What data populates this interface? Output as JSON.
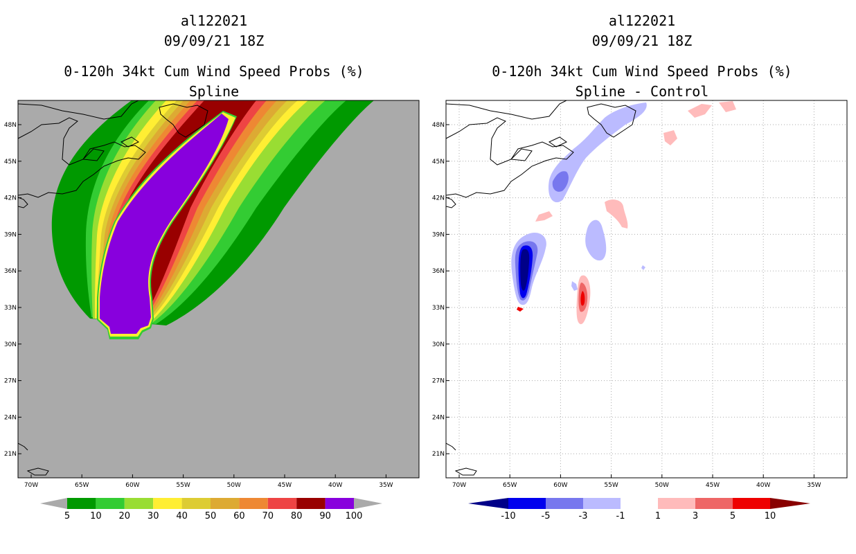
{
  "left": {
    "title": {
      "storm": "al122021",
      "datetime": "09/09/21 18Z",
      "product": "0-120h 34kt Cum Wind Speed Probs (%)",
      "subtitle": "Spline"
    },
    "lat_labels": [
      "48N",
      "45N",
      "42N",
      "39N",
      "36N",
      "33N",
      "30N",
      "27N",
      "24N",
      "21N"
    ],
    "lon_labels": [
      "70W",
      "65W",
      "60W",
      "55W",
      "50W",
      "45W",
      "40W",
      "35W"
    ],
    "colorbar": {
      "labels": [
        "5",
        "10",
        "20",
        "30",
        "40",
        "50",
        "60",
        "70",
        "80",
        "90",
        "100"
      ],
      "colors": [
        "#009900",
        "#33cc33",
        "#99dd33",
        "#ffee33",
        "#ddcc33",
        "#ddaa33",
        "#ee8833",
        "#ee4444",
        "#990000",
        "#8800dd"
      ],
      "background": "#aaaaaa"
    }
  },
  "right": {
    "title": {
      "storm": "al122021",
      "datetime": "09/09/21 18Z",
      "product": "0-120h 34kt Cum Wind Speed Probs (%)",
      "subtitle": "Spline - Control"
    },
    "lat_labels": [
      "48N",
      "45N",
      "42N",
      "39N",
      "36N",
      "33N",
      "30N",
      "27N",
      "24N",
      "21N"
    ],
    "lon_labels": [
      "70W",
      "65W",
      "60W",
      "55W",
      "50W",
      "45W",
      "40W",
      "35W"
    ],
    "colorbar": {
      "labels": [
        "-10",
        "-5",
        "-3",
        "-1",
        "1",
        "3",
        "5",
        "10"
      ],
      "colors": [
        "#000088",
        "#0000ee",
        "#7777ee",
        "#bbbbff",
        "#ffffff",
        "#ffbbbb",
        "#ee6666",
        "#ee0000",
        "#880000"
      ]
    }
  }
}
